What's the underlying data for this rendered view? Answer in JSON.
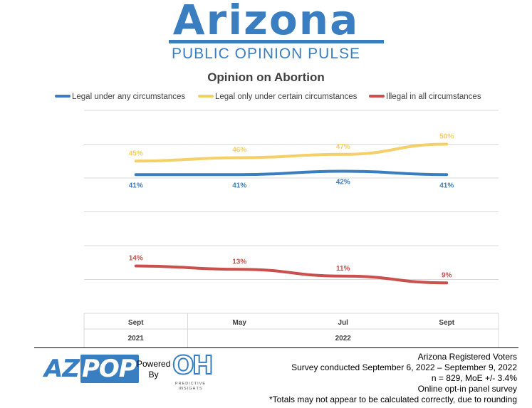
{
  "header": {
    "logo_title": "Arizona",
    "logo_subtitle": "PUBLIC OPINION PULSE",
    "brand_color": "#3a7ec2"
  },
  "chart_data": {
    "type": "line",
    "title": "Opinion on Abortion",
    "categories": [
      "Sept",
      "May",
      "Jul",
      "Sept"
    ],
    "year_groups": [
      {
        "label": "2021",
        "span": 1
      },
      {
        "label": "2022",
        "span": 3
      }
    ],
    "ylim": [
      0,
      60
    ],
    "grid": true,
    "legend_position": "top",
    "series": [
      {
        "name": "Legal under any circumstances",
        "values": [
          41,
          41,
          42,
          41
        ],
        "labels": [
          "41%",
          "41%",
          "42%",
          "41%"
        ],
        "color": "#3a7ec2",
        "label_position": "below"
      },
      {
        "name": "Legal only under certain circumstances",
        "values": [
          45,
          46,
          47,
          50
        ],
        "labels": [
          "45%",
          "46%",
          "47%",
          "50%"
        ],
        "color": "#f5cf68",
        "label_position": "above"
      },
      {
        "name": "Illegal in all circumstances",
        "values": [
          14,
          13,
          11,
          9
        ],
        "labels": [
          "14%",
          "13%",
          "11%",
          "9%"
        ],
        "color": "#c9504d",
        "label_position": "above"
      }
    ]
  },
  "footer": {
    "azpop_az": "AZ",
    "azpop_pop": "POP",
    "powered_by": "Powered\nBy",
    "oh_logo": "OH",
    "predictive": "PREDICTIVE\nINSIGHTS",
    "notes": [
      "Arizona Registered Voters",
      "Survey conducted September 6, 2022 – September 9, 2022",
      "n = 829, MoE +/- 3.4%",
      "Online opt-in panel survey",
      "*Totals may not appear to be calculated correctly, due to rounding"
    ]
  }
}
